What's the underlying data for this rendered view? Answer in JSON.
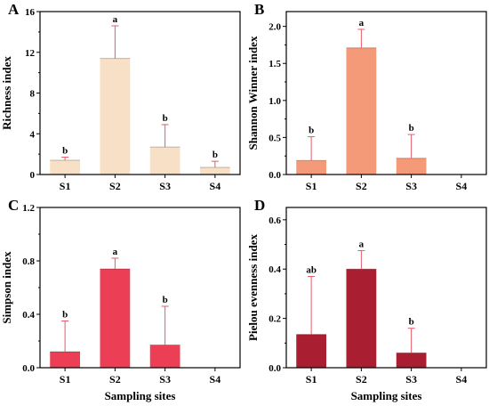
{
  "chart_data": [
    {
      "panel_label": "A",
      "type": "bar",
      "categories": [
        "S1",
        "S2",
        "S3",
        "S4"
      ],
      "values": [
        1.4,
        11.4,
        2.7,
        0.7
      ],
      "errors": [
        0.3,
        3.2,
        2.2,
        0.6
      ],
      "sig_letters": [
        "b",
        "a",
        "b",
        "b"
      ],
      "bar_color": "#f7e0c6",
      "ylabel": "Richness index",
      "xlabel": "",
      "ylim": [
        0,
        16
      ],
      "yticks": [
        0,
        4,
        8,
        12,
        16
      ],
      "ytick_labels": [
        "0",
        "4",
        "8",
        "12",
        "16"
      ]
    },
    {
      "panel_label": "B",
      "type": "bar",
      "categories": [
        "S1",
        "S2",
        "S3",
        "S4"
      ],
      "values": [
        0.19,
        1.71,
        0.22,
        0
      ],
      "errors": [
        0.32,
        0.25,
        0.32,
        0
      ],
      "sig_letters": [
        "b",
        "a",
        "b",
        ""
      ],
      "bar_color": "#f49a78",
      "ylabel": "Shannon Winner index",
      "xlabel": "",
      "ylim": [
        0,
        2.2
      ],
      "yticks": [
        0,
        0.5,
        1.0,
        1.5,
        2.0
      ],
      "ytick_labels": [
        "0.0",
        "0.5",
        "1.0",
        "1.5",
        "2.0"
      ]
    },
    {
      "panel_label": "C",
      "type": "bar",
      "categories": [
        "S1",
        "S2",
        "S3",
        "S4"
      ],
      "values": [
        0.12,
        0.74,
        0.17,
        0
      ],
      "errors": [
        0.23,
        0.08,
        0.29,
        0
      ],
      "sig_letters": [
        "b",
        "a",
        "b",
        ""
      ],
      "bar_color": "#ec3f56",
      "ylabel": "Simpson index",
      "xlabel": "Sampling sites",
      "ylim": [
        0,
        1.2
      ],
      "yticks": [
        0,
        0.4,
        0.8,
        1.2
      ],
      "ytick_labels": [
        "0.0",
        "0.4",
        "0.8",
        "1.2"
      ]
    },
    {
      "panel_label": "D",
      "type": "bar",
      "categories": [
        "S1",
        "S2",
        "S3",
        "S4"
      ],
      "values": [
        0.135,
        0.4,
        0.06,
        0
      ],
      "errors": [
        0.235,
        0.075,
        0.1,
        0
      ],
      "sig_letters": [
        "ab",
        "a",
        "b",
        ""
      ],
      "bar_color": "#a91e30",
      "ylabel": "Pielou evenness index",
      "xlabel": "Sampling sites",
      "ylim": [
        0,
        0.65
      ],
      "yticks": [
        0,
        0.2,
        0.4,
        0.6
      ],
      "ytick_labels": [
        "0.0",
        "0.2",
        "0.4",
        "0.6"
      ]
    }
  ]
}
